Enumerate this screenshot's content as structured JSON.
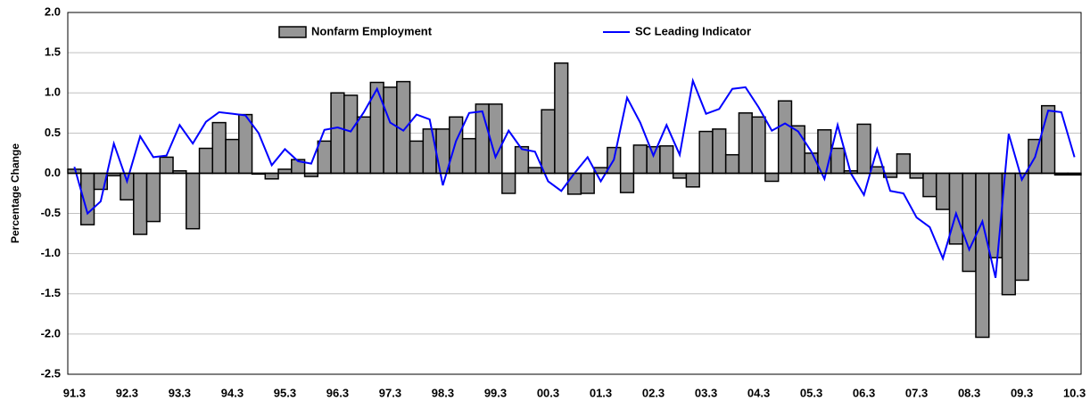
{
  "chart_data": {
    "type": "bar-line",
    "y_label": "Percentage Change",
    "categories": [
      "91.3",
      null,
      null,
      null,
      "92.3",
      null,
      null,
      null,
      "93.3",
      null,
      null,
      null,
      "94.3",
      null,
      null,
      null,
      "95.3",
      null,
      null,
      null,
      "96.3",
      null,
      null,
      null,
      "97.3",
      null,
      null,
      null,
      "98.3",
      null,
      null,
      null,
      "99.3",
      null,
      null,
      null,
      "00.3",
      null,
      null,
      null,
      "01.3",
      null,
      null,
      null,
      "02.3",
      null,
      null,
      null,
      "03.3",
      null,
      null,
      null,
      "04.3",
      null,
      null,
      null,
      "05.3",
      null,
      null,
      null,
      "06.3",
      null,
      null,
      null,
      "07.3",
      null,
      null,
      null,
      "08.3",
      null,
      null,
      null,
      "09.3",
      null,
      null,
      null,
      "10.3"
    ],
    "series": [
      {
        "name": "Nonfarm Employment",
        "kind": "bar",
        "color": "#969696",
        "values": [
          0.05,
          -0.64,
          -0.2,
          -0.03,
          -0.33,
          -0.76,
          -0.6,
          0.2,
          0.03,
          -0.69,
          0.31,
          0.63,
          0.42,
          0.73,
          -0.01,
          -0.07,
          0.05,
          0.17,
          -0.04,
          0.4,
          1.0,
          0.97,
          0.7,
          1.13,
          1.07,
          1.14,
          0.4,
          0.55,
          0.55,
          0.7,
          0.43,
          0.86,
          0.86,
          -0.25,
          0.33,
          0.07,
          0.79,
          1.37,
          -0.26,
          -0.25,
          0.07,
          0.32,
          -0.24,
          0.35,
          0.33,
          0.34,
          -0.06,
          -0.17,
          0.52,
          0.55,
          0.23,
          0.75,
          0.7,
          -0.1,
          0.9,
          0.59,
          0.25,
          0.54,
          0.31,
          0.03,
          0.61,
          0.08,
          -0.05,
          0.24,
          -0.06,
          -0.29,
          -0.45,
          -0.88,
          -1.22,
          -2.04,
          -1.05,
          -1.51,
          -1.33,
          0.42,
          0.84,
          -0.02,
          -0.02
        ]
      },
      {
        "name": "SC Leading Indicator",
        "kind": "line",
        "color": "#0000ff",
        "values": [
          0.08,
          -0.5,
          -0.35,
          0.37,
          -0.1,
          0.46,
          0.2,
          0.22,
          0.6,
          0.37,
          0.64,
          0.76,
          0.74,
          0.72,
          0.5,
          0.1,
          0.3,
          0.15,
          0.12,
          0.54,
          0.57,
          0.52,
          0.76,
          1.05,
          0.63,
          0.53,
          0.73,
          0.67,
          -0.15,
          0.4,
          0.75,
          0.77,
          0.2,
          0.53,
          0.3,
          0.27,
          -0.1,
          -0.22,
          0,
          0.2,
          -0.1,
          0.17,
          0.94,
          0.63,
          0.22,
          0.6,
          0.23,
          1.15,
          0.74,
          0.8,
          1.05,
          1.07,
          0.82,
          0.53,
          0.62,
          0.52,
          0.27,
          -0.07,
          0.6,
          0,
          -0.27,
          0.3,
          -0.22,
          -0.25,
          -0.55,
          -0.67,
          -1.06,
          -0.5,
          -0.95,
          -0.6,
          -1.3,
          0.49,
          -0.08,
          0.2,
          0.78,
          0.76,
          0.2
        ]
      }
    ],
    "ylim": [
      -2.5,
      2.0
    ],
    "yticks": [
      {
        "value": -2.5,
        "label": "-2.5"
      },
      {
        "value": -2,
        "label": "-2.0"
      },
      {
        "value": -1.5,
        "label": "-1.5"
      },
      {
        "value": -1,
        "label": "-1.0"
      },
      {
        "value": -0.5,
        "label": "-0.5"
      },
      {
        "value": 0,
        "label": "0.0"
      },
      {
        "value": 0.5,
        "label": "0.5"
      },
      {
        "value": 1,
        "label": "1.0"
      },
      {
        "value": 1.5,
        "label": "1.5"
      },
      {
        "value": 2,
        "label": "2.0"
      }
    ],
    "grid": true
  }
}
